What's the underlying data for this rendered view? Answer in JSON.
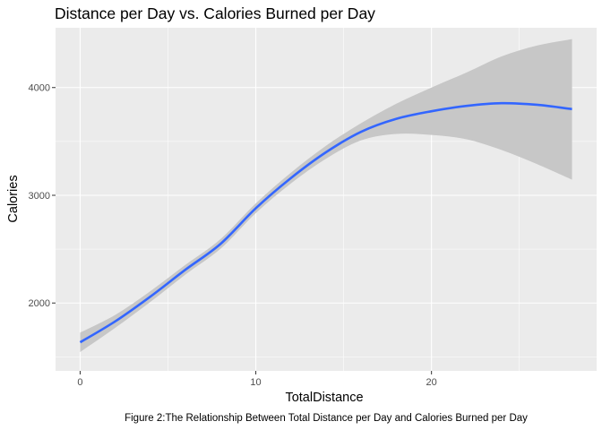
{
  "chart_data": {
    "type": "line",
    "title": "Distance per Day vs. Calories Burned per Day",
    "xlabel": "TotalDistance",
    "ylabel": "Calories",
    "caption": "Figure 2:The Relationship Between Total Distance per Day and Calories Burned per Day",
    "xlim": [
      -1.4,
      29.4
    ],
    "ylim": [
      1370,
      4555
    ],
    "x_ticks": [
      0,
      10,
      20
    ],
    "y_ticks": [
      2000,
      3000,
      4000
    ],
    "x_minor": [
      5,
      15,
      25
    ],
    "y_minor": [
      1500,
      2500,
      3500
    ],
    "grid": true,
    "colors": {
      "panel": "#ebebeb",
      "grid": "#ffffff",
      "line": "#3366ff",
      "band": "#c7c7c7"
    },
    "series": [
      {
        "x": [
          0,
          2,
          4,
          6,
          8,
          10,
          12,
          14,
          16,
          18,
          20,
          22,
          24,
          26,
          28
        ],
        "y": [
          1635,
          1830,
          2060,
          2310,
          2550,
          2880,
          3160,
          3400,
          3590,
          3710,
          3780,
          3830,
          3855,
          3840,
          3800
        ],
        "lower": [
          1545,
          1770,
          2010,
          2265,
          2505,
          2835,
          3110,
          3340,
          3510,
          3570,
          3560,
          3520,
          3420,
          3290,
          3145
        ],
        "upper": [
          1725,
          1890,
          2110,
          2355,
          2595,
          2925,
          3210,
          3460,
          3670,
          3850,
          4000,
          4140,
          4290,
          4390,
          4450
        ]
      }
    ]
  }
}
